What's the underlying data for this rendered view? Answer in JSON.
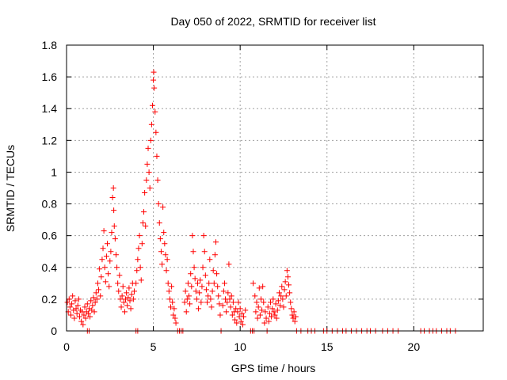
{
  "chart_data": {
    "type": "scatter",
    "title": "Day 050 of 2022, SRMTID for receiver list",
    "xlabel": "GPS time / hours",
    "ylabel": "SRMTID / TECUs",
    "xlim": [
      0,
      24
    ],
    "ylim": [
      0,
      1.8
    ],
    "xticks": [
      0,
      5,
      10,
      15,
      20
    ],
    "yticks": [
      0,
      0.2,
      0.4,
      0.6,
      0.8,
      1,
      1.2,
      1.4,
      1.6,
      1.8
    ],
    "ytick_labels": [
      "0",
      "0.2",
      "0.4",
      "0.6",
      "0.8",
      "1",
      "1.2",
      "1.4",
      "1.6",
      "1.8"
    ],
    "grid": true,
    "marker": "plus",
    "color": "#ff0000",
    "series": [
      {
        "name": "SRMTID",
        "points": [
          [
            0.05,
            0.18
          ],
          [
            0.1,
            0.12
          ],
          [
            0.15,
            0.2
          ],
          [
            0.2,
            0.15
          ],
          [
            0.25,
            0.1
          ],
          [
            0.3,
            0.17
          ],
          [
            0.35,
            0.22
          ],
          [
            0.4,
            0.13
          ],
          [
            0.45,
            0.08
          ],
          [
            0.5,
            0.19
          ],
          [
            0.55,
            0.14
          ],
          [
            0.6,
            0.11
          ],
          [
            0.65,
            0.16
          ],
          [
            0.7,
            0.2
          ],
          [
            0.75,
            0.09
          ],
          [
            0.8,
            0.13
          ],
          [
            0.85,
            0.06
          ],
          [
            0.9,
            0.12
          ],
          [
            0.95,
            0.04
          ],
          [
            1.0,
            0.1
          ],
          [
            1.05,
            0.15
          ],
          [
            1.1,
            0.08
          ],
          [
            1.15,
            0.12
          ],
          [
            1.2,
            0.17
          ],
          [
            1.25,
            0.11
          ],
          [
            1.3,
            0.14
          ],
          [
            1.35,
            0.09
          ],
          [
            1.4,
            0.19
          ],
          [
            1.45,
            0.13
          ],
          [
            1.5,
            0.16
          ],
          [
            1.55,
            0.21
          ],
          [
            1.6,
            0.12
          ],
          [
            1.65,
            0.18
          ],
          [
            1.7,
            0.24
          ],
          [
            1.75,
            0.2
          ],
          [
            1.8,
            0.3
          ],
          [
            1.85,
            0.26
          ],
          [
            1.9,
            0.39
          ],
          [
            1.95,
            0.22
          ],
          [
            2.0,
            0.34
          ],
          [
            2.05,
            0.45
          ],
          [
            2.1,
            0.52
          ],
          [
            2.15,
            0.63
          ],
          [
            2.2,
            0.4
          ],
          [
            2.25,
            0.31
          ],
          [
            2.3,
            0.47
          ],
          [
            2.35,
            0.55
          ],
          [
            2.4,
            0.36
          ],
          [
            2.45,
            0.28
          ],
          [
            2.5,
            0.44
          ],
          [
            2.55,
            0.5
          ],
          [
            2.6,
            0.62
          ],
          [
            2.65,
            0.84
          ],
          [
            2.7,
            0.9
          ],
          [
            2.72,
            0.76
          ],
          [
            2.75,
            0.66
          ],
          [
            2.8,
            0.58
          ],
          [
            2.85,
            0.48
          ],
          [
            2.9,
            0.4
          ],
          [
            2.95,
            0.3
          ],
          [
            3.0,
            0.25
          ],
          [
            3.05,
            0.35
          ],
          [
            3.1,
            0.2
          ],
          [
            3.15,
            0.15
          ],
          [
            3.2,
            0.22
          ],
          [
            3.25,
            0.28
          ],
          [
            3.3,
            0.18
          ],
          [
            3.35,
            0.12
          ],
          [
            3.4,
            0.2
          ],
          [
            3.45,
            0.24
          ],
          [
            3.5,
            0.16
          ],
          [
            3.55,
            0.21
          ],
          [
            3.6,
            0.27
          ],
          [
            3.65,
            0.19
          ],
          [
            3.7,
            0.14
          ],
          [
            3.75,
            0.23
          ],
          [
            3.8,
            0.3
          ],
          [
            3.85,
            0.2
          ],
          [
            3.9,
            0.25
          ],
          [
            4.0,
            0.3
          ],
          [
            4.05,
            0.38
          ],
          [
            4.1,
            0.45
          ],
          [
            4.15,
            0.52
          ],
          [
            4.2,
            0.6
          ],
          [
            4.25,
            0.4
          ],
          [
            4.3,
            0.32
          ],
          [
            4.35,
            0.55
          ],
          [
            4.4,
            0.68
          ],
          [
            4.45,
            0.75
          ],
          [
            4.5,
            0.87
          ],
          [
            4.55,
            0.66
          ],
          [
            4.6,
            0.95
          ],
          [
            4.65,
            1.05
          ],
          [
            4.7,
            1.15
          ],
          [
            4.75,
            1.0
          ],
          [
            4.8,
            0.9
          ],
          [
            4.85,
            1.2
          ],
          [
            4.9,
            1.3
          ],
          [
            4.95,
            1.42
          ],
          [
            5.0,
            1.58
          ],
          [
            5.02,
            1.63
          ],
          [
            5.05,
            1.53
          ],
          [
            5.1,
            1.38
          ],
          [
            5.15,
            1.25
          ],
          [
            5.2,
            1.1
          ],
          [
            5.25,
            0.95
          ],
          [
            5.3,
            0.8
          ],
          [
            5.35,
            0.68
          ],
          [
            5.4,
            0.58
          ],
          [
            5.45,
            0.5
          ],
          [
            5.5,
            0.42
          ],
          [
            5.55,
            0.78
          ],
          [
            5.6,
            0.62
          ],
          [
            5.65,
            0.55
          ],
          [
            5.7,
            0.48
          ],
          [
            5.75,
            0.38
          ],
          [
            5.8,
            0.45
          ],
          [
            5.85,
            0.3
          ],
          [
            5.9,
            0.25
          ],
          [
            5.95,
            0.2
          ],
          [
            6.0,
            0.15
          ],
          [
            6.05,
            0.28
          ],
          [
            6.1,
            0.18
          ],
          [
            6.15,
            0.1
          ],
          [
            6.2,
            0.14
          ],
          [
            6.25,
            0.08
          ],
          [
            6.3,
            0.05
          ],
          [
            6.4,
            0.0
          ],
          [
            6.5,
            0.0
          ],
          [
            6.6,
            0.0
          ],
          [
            6.7,
            0.0
          ],
          [
            6.8,
            0.18
          ],
          [
            6.85,
            0.25
          ],
          [
            6.9,
            0.12
          ],
          [
            6.95,
            0.2
          ],
          [
            7.0,
            0.3
          ],
          [
            7.05,
            0.22
          ],
          [
            7.1,
            0.17
          ],
          [
            7.15,
            0.36
          ],
          [
            7.2,
            0.28
          ],
          [
            7.25,
            0.6
          ],
          [
            7.3,
            0.5
          ],
          [
            7.35,
            0.4
          ],
          [
            7.4,
            0.33
          ],
          [
            7.45,
            0.25
          ],
          [
            7.5,
            0.2
          ],
          [
            7.55,
            0.3
          ],
          [
            7.6,
            0.14
          ],
          [
            7.65,
            0.24
          ],
          [
            7.7,
            0.32
          ],
          [
            7.75,
            0.18
          ],
          [
            7.8,
            0.28
          ],
          [
            7.85,
            0.4
          ],
          [
            7.9,
            0.6
          ],
          [
            7.95,
            0.5
          ],
          [
            8.0,
            0.35
          ],
          [
            8.05,
            0.26
          ],
          [
            8.1,
            0.18
          ],
          [
            8.15,
            0.22
          ],
          [
            8.2,
            0.3
          ],
          [
            8.25,
            0.45
          ],
          [
            8.3,
            0.2
          ],
          [
            8.35,
            0.15
          ],
          [
            8.4,
            0.25
          ],
          [
            8.45,
            0.38
          ],
          [
            8.5,
            0.3
          ],
          [
            8.55,
            0.48
          ],
          [
            8.6,
            0.56
          ],
          [
            8.65,
            0.36
          ],
          [
            8.7,
            0.28
          ],
          [
            8.75,
            0.22
          ],
          [
            8.8,
            0.17
          ],
          [
            8.85,
            0.1
          ],
          [
            8.9,
            0.0
          ],
          [
            9.0,
            0.16
          ],
          [
            9.05,
            0.25
          ],
          [
            9.1,
            0.3
          ],
          [
            9.15,
            0.2
          ],
          [
            9.2,
            0.12
          ],
          [
            9.25,
            0.18
          ],
          [
            9.3,
            0.24
          ],
          [
            9.35,
            0.42
          ],
          [
            9.4,
            0.2
          ],
          [
            9.45,
            0.15
          ],
          [
            9.5,
            0.22
          ],
          [
            9.55,
            0.1
          ],
          [
            9.6,
            0.18
          ],
          [
            9.65,
            0.12
          ],
          [
            9.7,
            0.07
          ],
          [
            9.75,
            0.14
          ],
          [
            9.8,
            0.05
          ],
          [
            9.85,
            0.12
          ],
          [
            9.9,
            0.18
          ],
          [
            9.95,
            0.09
          ],
          [
            10.0,
            0.14
          ],
          [
            10.05,
            0.06
          ],
          [
            10.1,
            0.11
          ],
          [
            10.15,
            0.04
          ],
          [
            10.2,
            0.09
          ],
          [
            10.3,
            0.13
          ],
          [
            10.6,
            0.0
          ],
          [
            10.7,
            0.0
          ],
          [
            10.75,
            0.3
          ],
          [
            10.8,
            0.0
          ],
          [
            10.85,
            0.22
          ],
          [
            10.9,
            0.12
          ],
          [
            10.95,
            0.18
          ],
          [
            11.0,
            0.08
          ],
          [
            11.05,
            0.15
          ],
          [
            11.1,
            0.27
          ],
          [
            11.15,
            0.1
          ],
          [
            11.2,
            0.2
          ],
          [
            11.25,
            0.13
          ],
          [
            11.3,
            0.28
          ],
          [
            11.35,
            0.18
          ],
          [
            11.4,
            0.05
          ],
          [
            11.45,
            0.12
          ],
          [
            11.5,
            0.08
          ],
          [
            11.55,
            0.0
          ],
          [
            11.6,
            0.15
          ],
          [
            11.65,
            0.06
          ],
          [
            11.7,
            0.11
          ],
          [
            11.75,
            0.18
          ],
          [
            11.8,
            0.09
          ],
          [
            11.85,
            0.14
          ],
          [
            11.9,
            0.2
          ],
          [
            11.95,
            0.12
          ],
          [
            12.0,
            0.1
          ],
          [
            12.05,
            0.17
          ],
          [
            12.1,
            0.08
          ],
          [
            12.15,
            0.13
          ],
          [
            12.2,
            0.19
          ],
          [
            12.25,
            0.24
          ],
          [
            12.3,
            0.16
          ],
          [
            12.35,
            0.22
          ],
          [
            12.4,
            0.28
          ],
          [
            12.45,
            0.2
          ],
          [
            12.5,
            0.15
          ],
          [
            12.55,
            0.26
          ],
          [
            12.6,
            0.31
          ],
          [
            12.65,
            0.22
          ],
          [
            12.7,
            0.38
          ],
          [
            12.75,
            0.34
          ],
          [
            12.8,
            0.29
          ],
          [
            12.85,
            0.24
          ],
          [
            12.9,
            0.18
          ],
          [
            12.95,
            0.14
          ],
          [
            13.0,
            0.1
          ],
          [
            13.05,
            0.08
          ],
          [
            13.1,
            0.12
          ],
          [
            13.15,
            0.06
          ],
          [
            13.2,
            0.09
          ],
          [
            13.25,
            0.0
          ],
          [
            13.5,
            0.0
          ],
          [
            13.9,
            0.0
          ],
          [
            14.1,
            0.0
          ],
          [
            14.3,
            0.0
          ],
          [
            14.8,
            0.0
          ],
          [
            15.0,
            0.0
          ],
          [
            15.3,
            0.0
          ],
          [
            15.6,
            0.0
          ],
          [
            15.9,
            0.0
          ],
          [
            16.1,
            0.0
          ],
          [
            16.4,
            0.0
          ],
          [
            16.7,
            0.0
          ],
          [
            17.0,
            0.0
          ],
          [
            17.3,
            0.0
          ],
          [
            17.5,
            0.0
          ],
          [
            17.8,
            0.0
          ],
          [
            18.2,
            0.0
          ],
          [
            18.5,
            0.0
          ],
          [
            18.8,
            0.0
          ],
          [
            19.1,
            0.0
          ],
          [
            20.4,
            0.0
          ],
          [
            20.6,
            0.0
          ],
          [
            20.9,
            0.0
          ],
          [
            21.1,
            0.0
          ],
          [
            21.3,
            0.0
          ],
          [
            21.6,
            0.0
          ],
          [
            21.9,
            0.0
          ],
          [
            22.1,
            0.0
          ],
          [
            22.4,
            0.0
          ],
          [
            1.2,
            0.0
          ],
          [
            1.3,
            0.0
          ],
          [
            4.0,
            0.0
          ],
          [
            4.1,
            0.0
          ]
        ]
      }
    ]
  }
}
